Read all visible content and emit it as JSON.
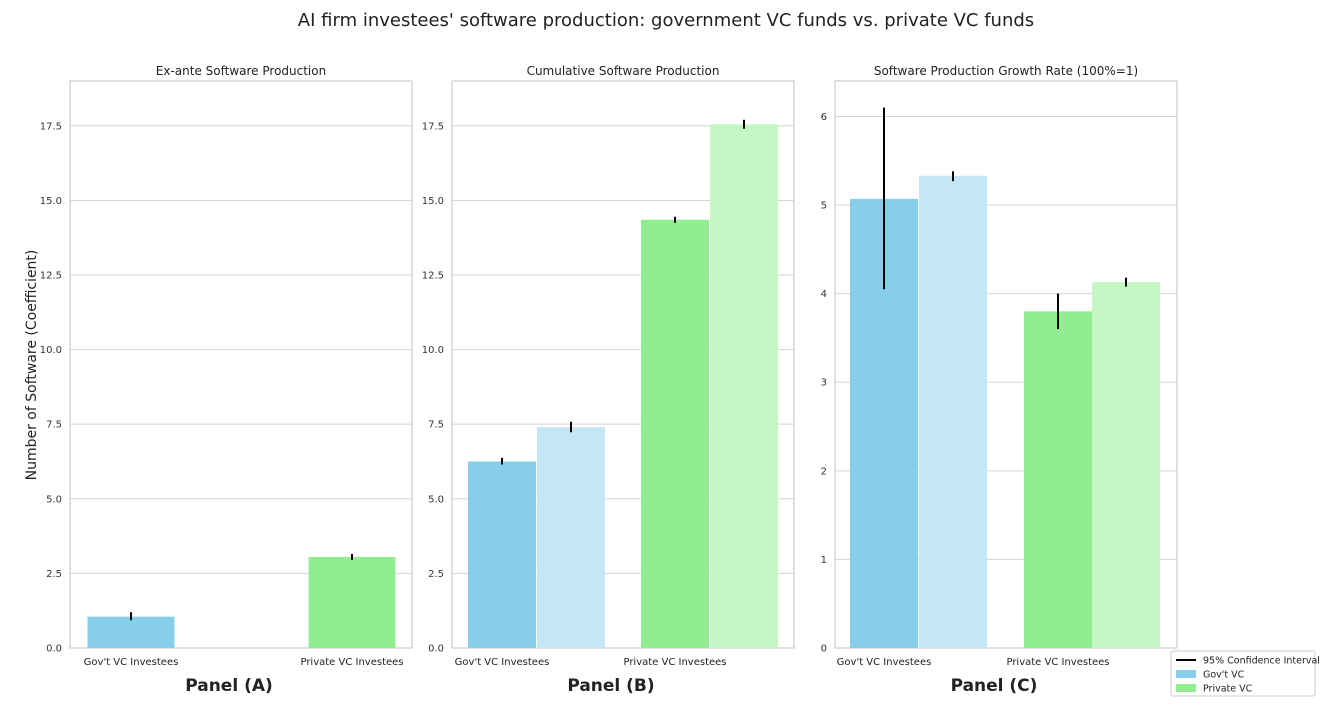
{
  "figure": {
    "title": "AI firm investees' software production: government VC funds vs. private VC funds",
    "ylabel": "Number of Software (Coefficient)",
    "colors": {
      "gov_vc": "#87ceeb",
      "gov_vc_light": "#c4e6f5",
      "private_vc": "#90ee90",
      "private_vc_light": "#c5f7c5",
      "error_bar": "#000000",
      "grid": "#d3d3d3",
      "frame": "#cccccc"
    }
  },
  "legend": {
    "placement": "bottom-right, outside plots",
    "items": [
      {
        "label": "95% Confidence Interval",
        "type": "line",
        "color": "#000000"
      },
      {
        "label": "Gov't VC",
        "type": "patch",
        "color": "#87ceeb"
      },
      {
        "label": "Private VC",
        "type": "patch",
        "color": "#90ee90"
      }
    ]
  },
  "chart_data": [
    {
      "type": "bar",
      "panel_label": "Panel (A)",
      "title": "Ex-ante Software Production",
      "categories": [
        "Gov't VC Investees",
        "Private VC Investees"
      ],
      "ylim": [
        0,
        19
      ],
      "yticks": [
        "0.0",
        "2.5",
        "5.0",
        "7.5",
        "10.0",
        "12.5",
        "15.0",
        "17.5"
      ],
      "ytick_values": [
        0,
        2.5,
        5,
        7.5,
        10,
        12.5,
        15,
        17.5
      ],
      "grid": true,
      "bars": [
        {
          "category": "Gov't VC Investees",
          "value": 1.05,
          "ci": [
            0.93,
            1.2
          ],
          "color": "#87ceeb"
        },
        {
          "category": "Private VC Investees",
          "value": 3.05,
          "ci": [
            2.95,
            3.15
          ],
          "color": "#90ee90"
        }
      ]
    },
    {
      "type": "bar",
      "panel_label": "Panel (B)",
      "title": "Cumulative Software Production",
      "categories": [
        "Gov't VC Investees",
        "Private VC Investees"
      ],
      "ylim": [
        0,
        19
      ],
      "yticks": [
        "0.0",
        "2.5",
        "5.0",
        "7.5",
        "10.0",
        "12.5",
        "15.0",
        "17.5"
      ],
      "ytick_values": [
        0,
        2.5,
        5,
        7.5,
        10,
        12.5,
        15,
        17.5
      ],
      "grid": true,
      "bars": [
        {
          "category": "Gov't VC Investees",
          "value": 6.25,
          "ci": [
            6.15,
            6.37
          ],
          "color": "#87ceeb"
        },
        {
          "category": "Gov't VC Investees",
          "value": 7.4,
          "ci": [
            7.23,
            7.58
          ],
          "color": "#c4e6f5"
        },
        {
          "category": "Private VC Investees",
          "value": 14.35,
          "ci": [
            14.25,
            14.45
          ],
          "color": "#90ee90"
        },
        {
          "category": "Private VC Investees",
          "value": 17.55,
          "ci": [
            17.4,
            17.7
          ],
          "color": "#c5f7c5"
        }
      ]
    },
    {
      "type": "bar",
      "panel_label": "Panel (C)",
      "title": "Software Production Growth Rate (100%=1)",
      "categories": [
        "Gov't VC Investees",
        "Private VC Investees"
      ],
      "ylim": [
        0,
        6.4
      ],
      "yticks": [
        "0",
        "1",
        "2",
        "3",
        "4",
        "5",
        "6"
      ],
      "ytick_values": [
        0,
        1,
        2,
        3,
        4,
        5,
        6
      ],
      "grid": true,
      "bars": [
        {
          "category": "Gov't VC Investees",
          "value": 5.07,
          "ci": [
            4.05,
            6.1
          ],
          "color": "#87ceeb"
        },
        {
          "category": "Gov't VC Investees",
          "value": 5.33,
          "ci": [
            5.27,
            5.38
          ],
          "color": "#c4e6f5"
        },
        {
          "category": "Private VC Investees",
          "value": 3.8,
          "ci": [
            3.6,
            4.0
          ],
          "color": "#90ee90"
        },
        {
          "category": "Private VC Investees",
          "value": 4.13,
          "ci": [
            4.08,
            4.18
          ],
          "color": "#c5f7c5"
        }
      ]
    }
  ]
}
